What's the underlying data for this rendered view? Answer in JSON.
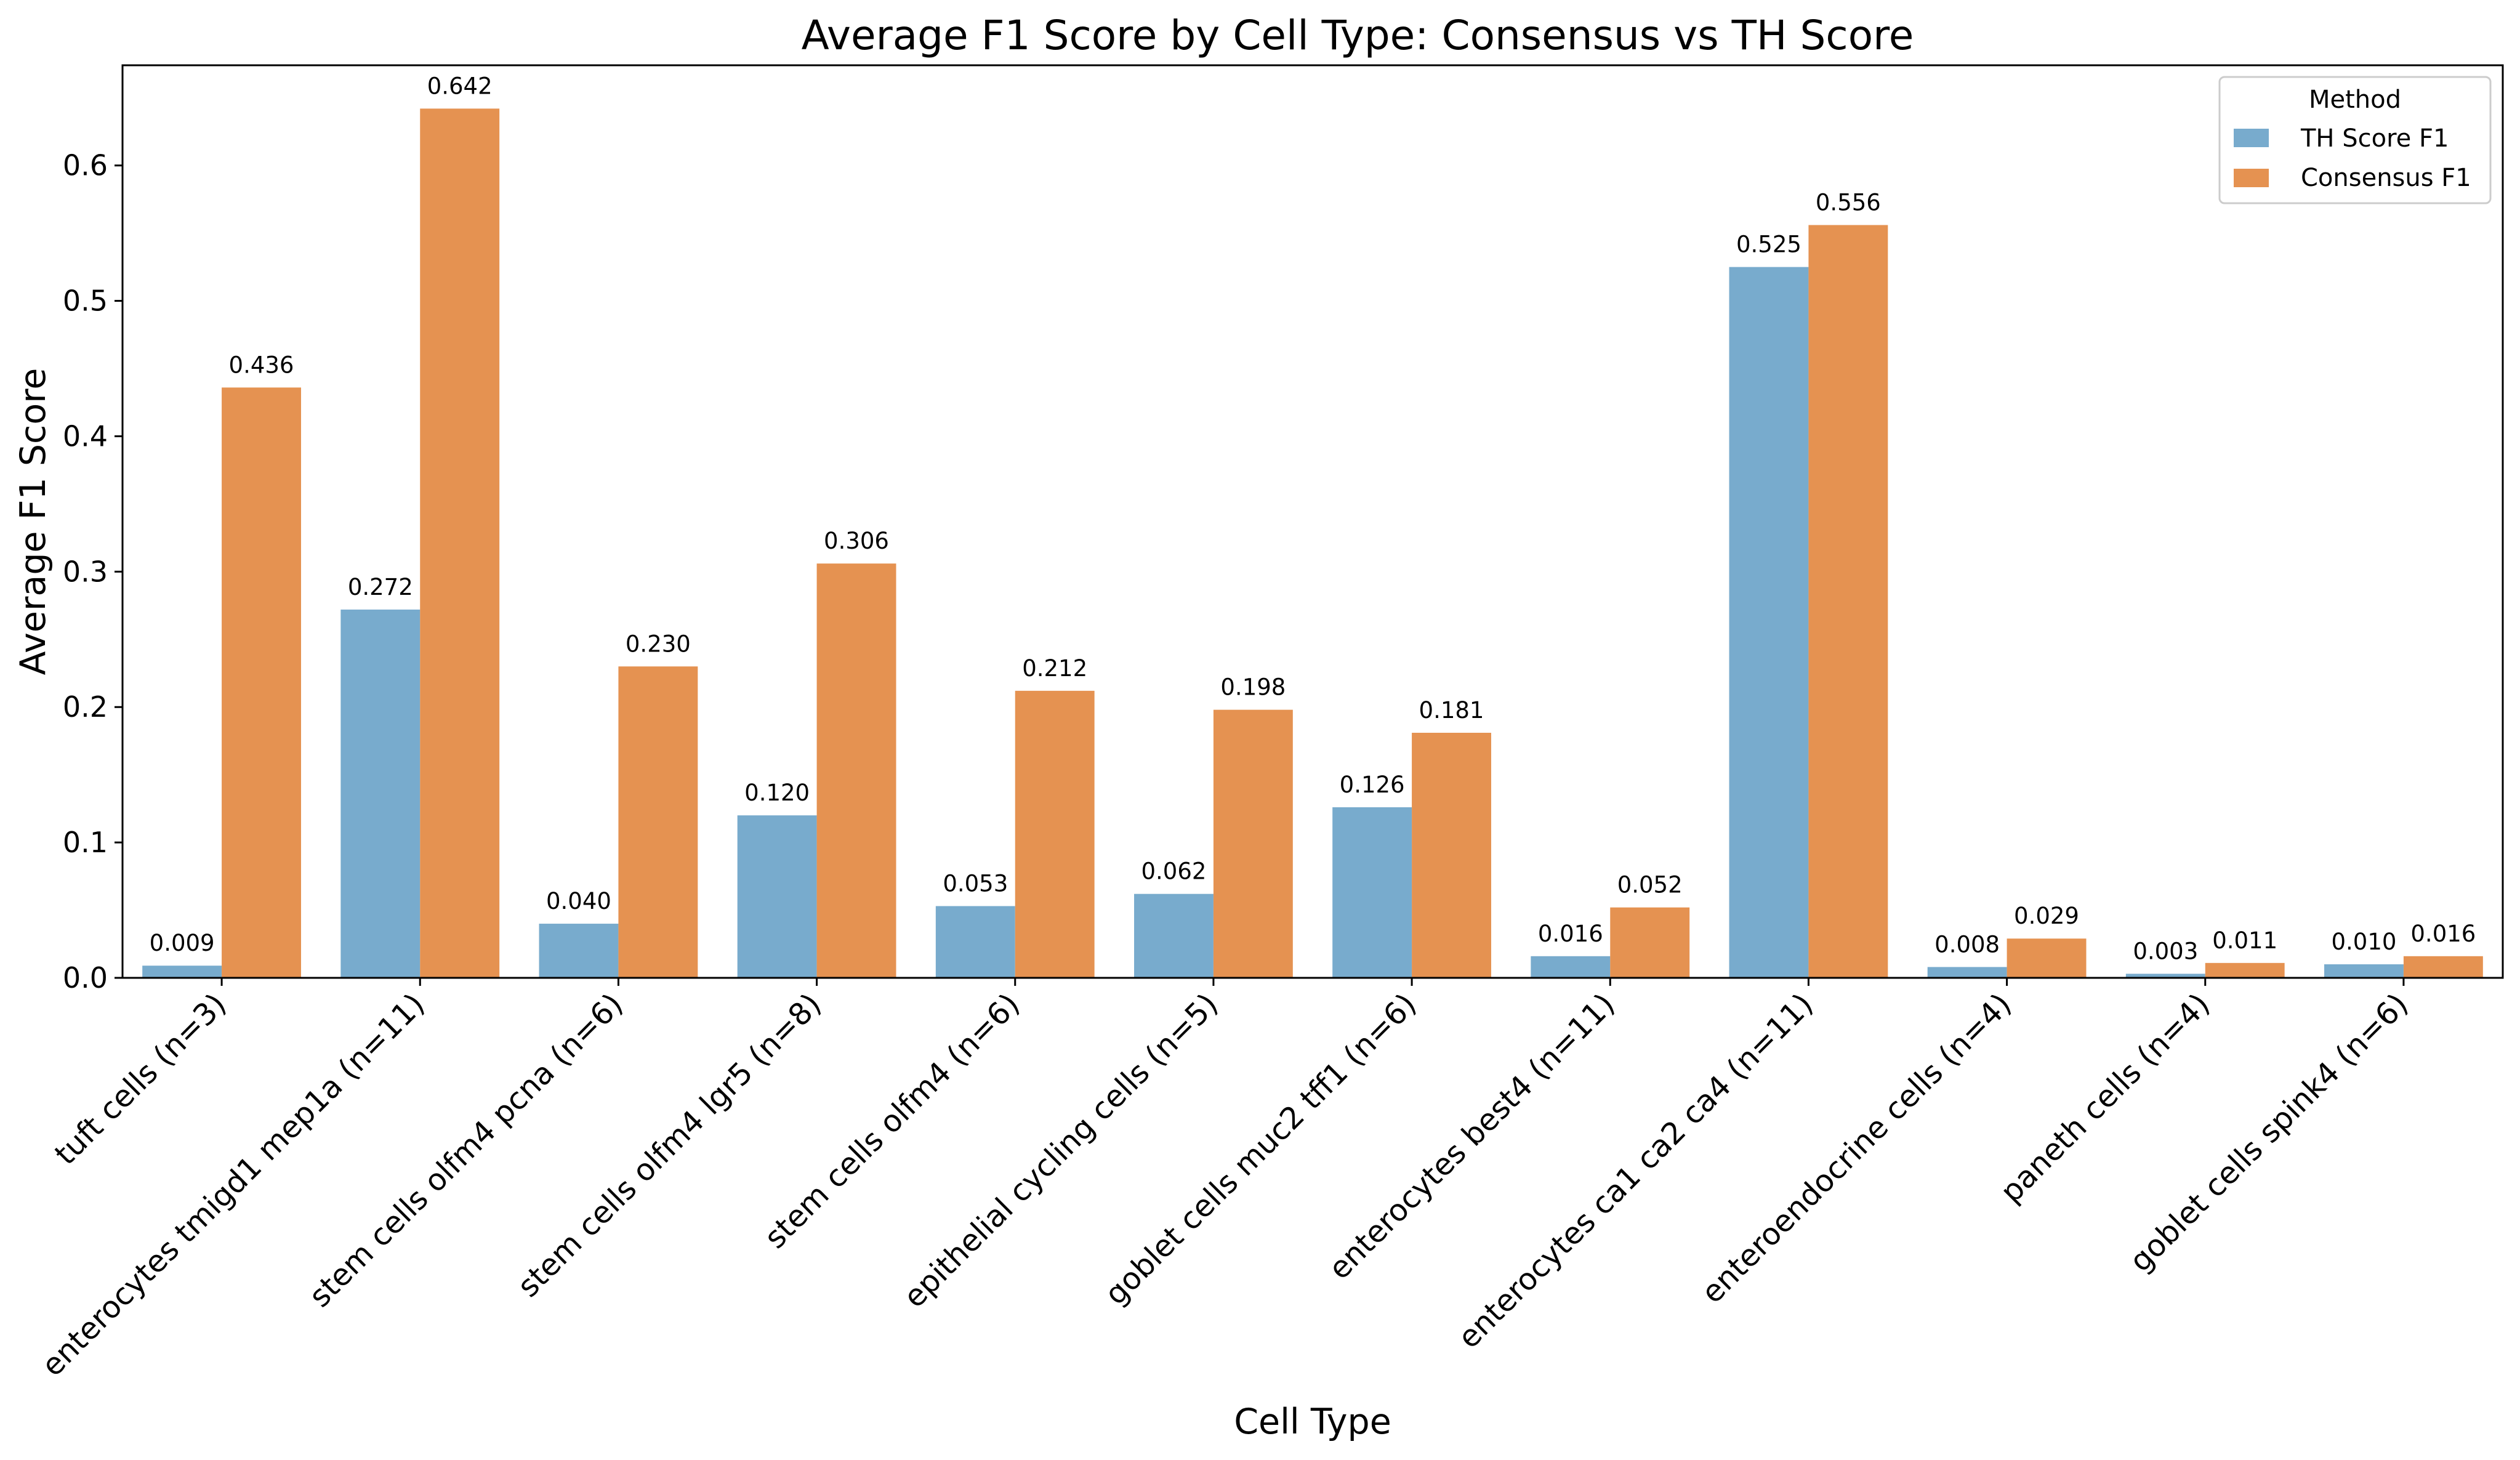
{
  "chart_data": {
    "type": "bar",
    "title": "Average F1 Score by Cell Type: Consensus vs TH Score",
    "xlabel": "Cell Type",
    "ylabel": "Average F1 Score",
    "ylim": [
      0,
      0.674
    ],
    "yticks": [
      0.0,
      0.1,
      0.2,
      0.3,
      0.4,
      0.5,
      0.6
    ],
    "ytick_labels": [
      "0.0",
      "0.1",
      "0.2",
      "0.3",
      "0.4",
      "0.5",
      "0.6"
    ],
    "grid": false,
    "categories": [
      "tuft cells (n=3)",
      "enterocytes tmigd1 mep1a (n=11)",
      "stem cells olfm4 pcna (n=6)",
      "stem cells olfm4 lgr5 (n=8)",
      "stem cells olfm4 (n=6)",
      "epithelial cycling cells (n=5)",
      "goblet cells muc2 tff1 (n=6)",
      "enterocytes best4 (n=11)",
      "enterocytes ca1 ca2 ca4 (n=11)",
      "enteroendocrine cells (n=4)",
      "paneth cells (n=4)",
      "goblet cells spink4 (n=6)"
    ],
    "series": [
      {
        "name": "TH Score F1",
        "color": "#78abcd",
        "values": [
          0.009,
          0.272,
          0.04,
          0.12,
          0.053,
          0.062,
          0.126,
          0.016,
          0.525,
          0.008,
          0.003,
          0.01
        ],
        "labels": [
          "0.009",
          "0.272",
          "0.040",
          "0.120",
          "0.053",
          "0.062",
          "0.126",
          "0.016",
          "0.525",
          "0.008",
          "0.003",
          "0.010"
        ]
      },
      {
        "name": "Consensus F1",
        "color": "#e59251",
        "values": [
          0.436,
          0.642,
          0.23,
          0.306,
          0.212,
          0.198,
          0.181,
          0.052,
          0.556,
          0.029,
          0.011,
          0.016
        ],
        "labels": [
          "0.436",
          "0.642",
          "0.230",
          "0.306",
          "0.212",
          "0.198",
          "0.181",
          "0.052",
          "0.556",
          "0.029",
          "0.011",
          "0.016"
        ]
      }
    ],
    "legend": {
      "title": "Method",
      "position": "upper-right"
    }
  }
}
